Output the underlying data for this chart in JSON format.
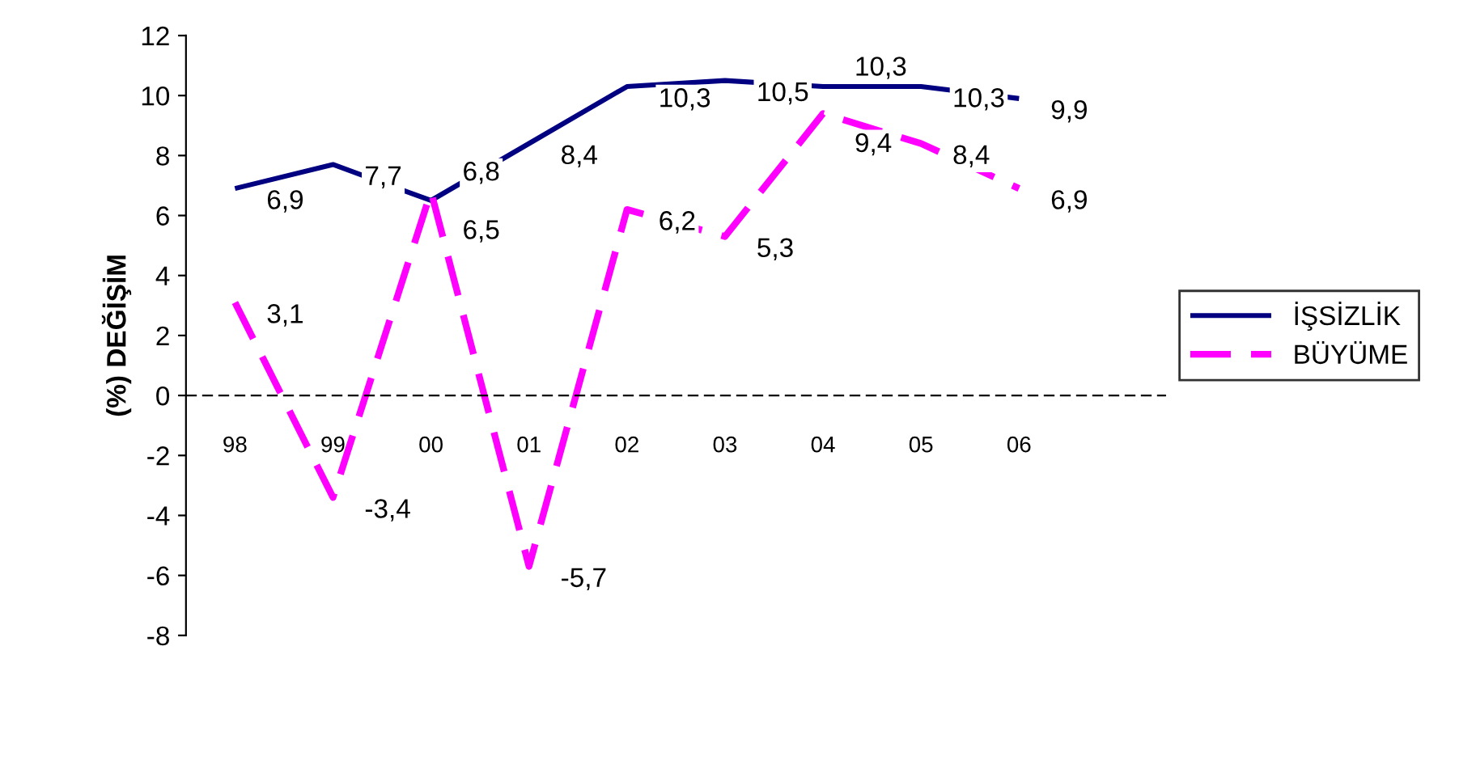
{
  "chart_data": {
    "type": "line",
    "ylabel": "(%) DEĞİŞİM",
    "categories": [
      "98",
      "99",
      "00",
      "01",
      "02",
      "03",
      "04",
      "05",
      "06"
    ],
    "series": [
      {
        "name": "İŞSİZLİK",
        "color": "#000080",
        "line_style": "solid",
        "values": [
          6.9,
          7.7,
          6.5,
          8.4,
          10.3,
          10.5,
          10.3,
          10.3,
          9.9
        ],
        "value_labels": [
          "6,9",
          "7,7",
          "6,5",
          "8,4",
          "10,3",
          "10,5",
          "10,3",
          "10,3",
          "9,9"
        ]
      },
      {
        "name": "BÜYÜME",
        "color": "#ff00ff",
        "line_style": "dashed",
        "values": [
          3.1,
          -3.4,
          6.8,
          -5.7,
          6.2,
          5.3,
          9.4,
          8.4,
          6.9
        ],
        "value_labels": [
          "3,1",
          "-3,4",
          "6,8",
          "-5,7",
          "6,2",
          "5,3",
          "9,4",
          "8,4",
          "6,9"
        ]
      }
    ],
    "ylim": [
      -8,
      12
    ],
    "yticks": [
      -8,
      -6,
      -4,
      -2,
      0,
      2,
      4,
      6,
      8,
      10,
      12
    ],
    "ref_lines": [
      {
        "axis": "y",
        "value": 0,
        "color": "#000000",
        "line_style": "dashed"
      }
    ],
    "grid": false,
    "legend": "right",
    "marker": "none"
  }
}
